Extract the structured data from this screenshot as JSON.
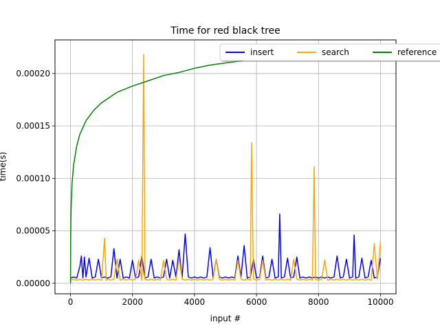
{
  "chart_data": {
    "type": "line",
    "title": "Time for red black tree",
    "xlabel": "input #",
    "ylabel": "time(s)",
    "xlim": [
      -500,
      10500
    ],
    "ylim": [
      -1e-05,
      0.000232
    ],
    "x_ticks": [
      0,
      2000,
      4000,
      6000,
      8000,
      10000
    ],
    "x_tick_labels": [
      "0",
      "2000",
      "4000",
      "6000",
      "8000",
      "10000"
    ],
    "y_ticks": [
      0,
      5e-05,
      0.0001,
      0.00015,
      0.0002
    ],
    "y_tick_labels": [
      "0.00000",
      "0.00005",
      "0.00010",
      "0.00015",
      "0.00020"
    ],
    "grid": true,
    "legend": {
      "placement": "top-right",
      "columns": 3,
      "shadow": true
    },
    "series": [
      {
        "name": "insert",
        "color": "#0000ff",
        "x": [
          0,
          100,
          200,
          300,
          350,
          400,
          450,
          500,
          600,
          700,
          800,
          900,
          1000,
          1100,
          1200,
          1300,
          1400,
          1500,
          1600,
          1700,
          1800,
          1900,
          2000,
          2100,
          2200,
          2300,
          2400,
          2500,
          2600,
          2700,
          2800,
          2900,
          3000,
          3100,
          3200,
          3300,
          3400,
          3500,
          3600,
          3700,
          3800,
          3900,
          4000,
          4100,
          4200,
          4300,
          4400,
          4500,
          4600,
          4700,
          4800,
          4900,
          5000,
          5100,
          5200,
          5300,
          5400,
          5500,
          5600,
          5700,
          5800,
          5900,
          6000,
          6100,
          6200,
          6300,
          6400,
          6500,
          6600,
          6700,
          6750,
          6800,
          6900,
          7000,
          7100,
          7200,
          7300,
          7400,
          7500,
          7600,
          7700,
          7800,
          7900,
          8000,
          8100,
          8200,
          8300,
          8400,
          8500,
          8600,
          8700,
          8800,
          8900,
          9000,
          9100,
          9150,
          9200,
          9300,
          9400,
          9500,
          9600,
          9700,
          9800,
          9900,
          10000
        ],
        "values": [
          5e-06,
          6e-06,
          5e-06,
          1.6e-05,
          2.6e-05,
          5e-06,
          2.5e-05,
          6e-06,
          2.4e-05,
          5e-06,
          6e-06,
          2.3e-05,
          5e-06,
          6e-06,
          5e-06,
          6e-06,
          3.3e-05,
          5e-06,
          2.3e-05,
          5e-06,
          6e-06,
          5e-06,
          2.2e-05,
          5e-06,
          6e-06,
          2.6e-05,
          5e-06,
          6e-06,
          2.3e-05,
          5e-06,
          6e-06,
          5e-06,
          6e-06,
          2.3e-05,
          5e-06,
          2.2e-05,
          6e-06,
          3.2e-05,
          5e-06,
          4.7e-05,
          6e-06,
          5e-06,
          6e-06,
          5e-06,
          6e-06,
          5e-06,
          6e-06,
          3.4e-05,
          5e-06,
          2.3e-05,
          6e-06,
          5e-06,
          6e-06,
          5e-06,
          6e-06,
          5e-06,
          2.6e-05,
          6e-06,
          3.6e-05,
          5e-06,
          6e-06,
          2.3e-05,
          5e-06,
          6e-06,
          2.6e-05,
          5e-06,
          6e-06,
          2.3e-05,
          5e-06,
          6e-06,
          6.6e-05,
          5e-06,
          6e-06,
          2.4e-05,
          5e-06,
          6e-06,
          2.5e-05,
          5e-06,
          6e-06,
          5e-06,
          6e-06,
          5e-06,
          6e-06,
          5e-06,
          6e-06,
          5e-06,
          6e-06,
          5e-06,
          6e-06,
          2.6e-05,
          5e-06,
          6e-06,
          2.3e-05,
          5e-06,
          6e-06,
          4.6e-05,
          5e-06,
          6e-06,
          2.4e-05,
          5e-06,
          6e-06,
          2.2e-05,
          5e-06,
          6e-06,
          2.4e-05
        ]
      },
      {
        "name": "search",
        "color": "#ffa500",
        "x": [
          0,
          100,
          200,
          300,
          400,
          500,
          600,
          700,
          800,
          900,
          1000,
          1100,
          1150,
          1200,
          1300,
          1400,
          1500,
          1600,
          1700,
          1800,
          1900,
          2000,
          2100,
          2200,
          2300,
          2360,
          2400,
          2500,
          2600,
          2700,
          2800,
          2900,
          3000,
          3100,
          3200,
          3300,
          3400,
          3500,
          3600,
          3700,
          3800,
          3900,
          4000,
          4100,
          4200,
          4300,
          4400,
          4500,
          4600,
          4700,
          4800,
          4900,
          5000,
          5100,
          5200,
          5300,
          5400,
          5500,
          5600,
          5700,
          5800,
          5840,
          5900,
          6000,
          6100,
          6200,
          6300,
          6400,
          6500,
          6600,
          6700,
          6800,
          6900,
          7000,
          7100,
          7200,
          7300,
          7400,
          7500,
          7600,
          7700,
          7800,
          7860,
          7900,
          8000,
          8100,
          8200,
          8300,
          8400,
          8500,
          8600,
          8700,
          8800,
          8900,
          9000,
          9100,
          9200,
          9300,
          9400,
          9500,
          9600,
          9700,
          9800,
          9900,
          10000
        ],
        "values": [
          3e-06,
          4e-06,
          3e-06,
          4e-06,
          3e-06,
          4e-06,
          3e-06,
          4e-06,
          3e-06,
          4e-06,
          3e-06,
          4.3e-05,
          3e-06,
          4e-06,
          3e-06,
          4e-06,
          2.3e-05,
          3e-06,
          4e-06,
          3e-06,
          4e-06,
          3e-06,
          4e-06,
          2.2e-05,
          3e-06,
          0.000218,
          4e-06,
          3e-06,
          4e-06,
          3e-06,
          4e-06,
          3e-06,
          2.2e-05,
          4e-06,
          3e-06,
          4e-06,
          3e-06,
          2.4e-05,
          4e-06,
          3e-06,
          4e-06,
          3e-06,
          4e-06,
          3e-06,
          4e-06,
          3e-06,
          4e-06,
          3e-06,
          4e-06,
          2.3e-05,
          4e-06,
          3e-06,
          4e-06,
          3e-06,
          4e-06,
          3e-06,
          2.2e-05,
          4e-06,
          3e-06,
          4e-06,
          3e-06,
          0.000134,
          4e-06,
          3e-06,
          4e-06,
          2.2e-05,
          3e-06,
          4e-06,
          3e-06,
          4e-06,
          3e-06,
          4e-06,
          3e-06,
          4e-06,
          3e-06,
          2.3e-05,
          4e-06,
          3e-06,
          4e-06,
          3e-06,
          4e-06,
          3e-06,
          0.000111,
          4e-06,
          3e-06,
          4e-06,
          2.2e-05,
          3e-06,
          4e-06,
          3e-06,
          4e-06,
          3e-06,
          4e-06,
          3e-06,
          4e-06,
          3e-06,
          4e-06,
          3e-06,
          4e-06,
          3e-06,
          4e-06,
          3e-06,
          3.8e-05,
          4e-06,
          4e-05
        ]
      },
      {
        "name": "reference",
        "color": "#008000",
        "x": [
          1,
          5,
          10,
          20,
          50,
          100,
          200,
          300,
          500,
          750,
          1000,
          1500,
          2000,
          2500,
          3000,
          3500,
          4000,
          4500,
          5000,
          5500,
          6000,
          6500,
          7000,
          7500,
          8000,
          8500,
          9000,
          9500,
          10000
        ],
        "values": [
          0.0,
          3.77e-05,
          5.31e-05,
          7.13e-05,
          9.55e-05,
          0.000113,
          0.000131,
          0.000142,
          0.000155,
          0.000165,
          0.000172,
          0.000182,
          0.000188,
          0.000193,
          0.000198,
          0.000201,
          0.000205,
          0.000208,
          0.00021,
          0.000212,
          0.000214,
          0.000216,
          0.000218,
          0.00022,
          0.000221,
          0.000223,
          0.000224,
          0.000226,
          0.000227
        ]
      }
    ]
  }
}
